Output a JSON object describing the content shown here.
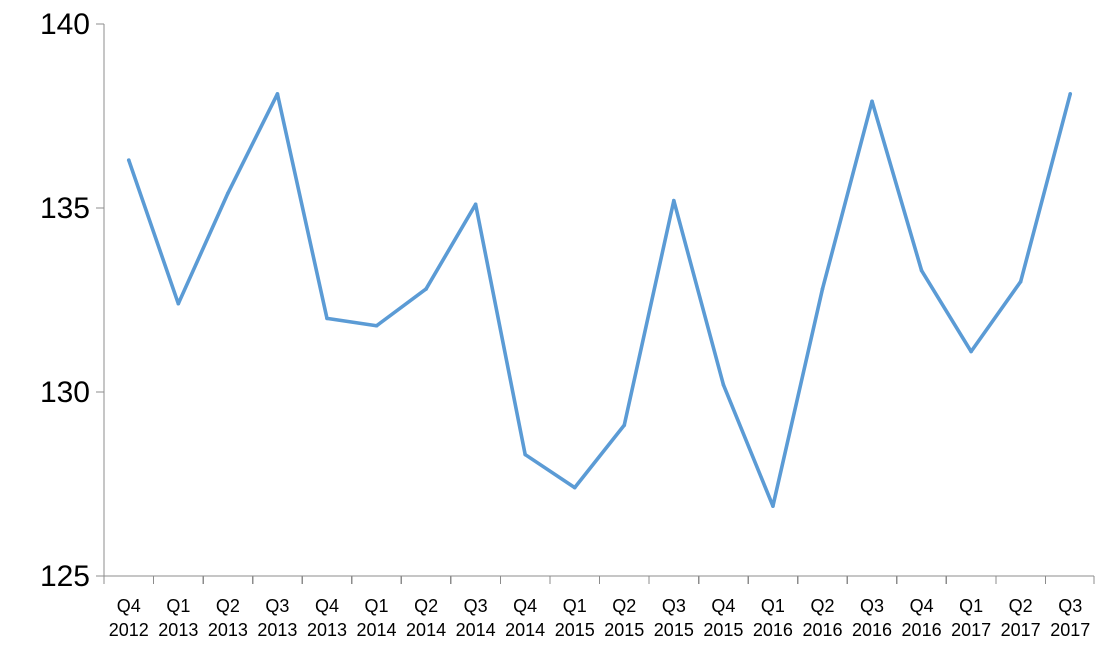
{
  "chart_data": {
    "type": "line",
    "title": "",
    "xlabel": "",
    "ylabel": "",
    "ylim": [
      125,
      140
    ],
    "y_ticks": [
      "125",
      "130",
      "135",
      "140"
    ],
    "categories": [
      [
        "Q4",
        "2012"
      ],
      [
        "Q1",
        "2013"
      ],
      [
        "Q2",
        "2013"
      ],
      [
        "Q3",
        "2013"
      ],
      [
        "Q4",
        "2013"
      ],
      [
        "Q1",
        "2014"
      ],
      [
        "Q2",
        "2014"
      ],
      [
        "Q3",
        "2014"
      ],
      [
        "Q4",
        "2014"
      ],
      [
        "Q1",
        "2015"
      ],
      [
        "Q2",
        "2015"
      ],
      [
        "Q3",
        "2015"
      ],
      [
        "Q4",
        "2015"
      ],
      [
        "Q1",
        "2016"
      ],
      [
        "Q2",
        "2016"
      ],
      [
        "Q3",
        "2016"
      ],
      [
        "Q4",
        "2016"
      ],
      [
        "Q1",
        "2017"
      ],
      [
        "Q2",
        "2017"
      ],
      [
        "Q3",
        "2017"
      ]
    ],
    "series": [
      {
        "color": "#5b9bd5",
        "values": [
          136.3,
          132.4,
          135.4,
          138.1,
          132.0,
          131.8,
          132.8,
          135.1,
          128.3,
          127.4,
          129.1,
          135.2,
          130.2,
          126.9,
          132.8,
          137.9,
          133.3,
          131.1,
          133.0,
          138.1
        ]
      }
    ],
    "grid": false,
    "legend": "none"
  }
}
